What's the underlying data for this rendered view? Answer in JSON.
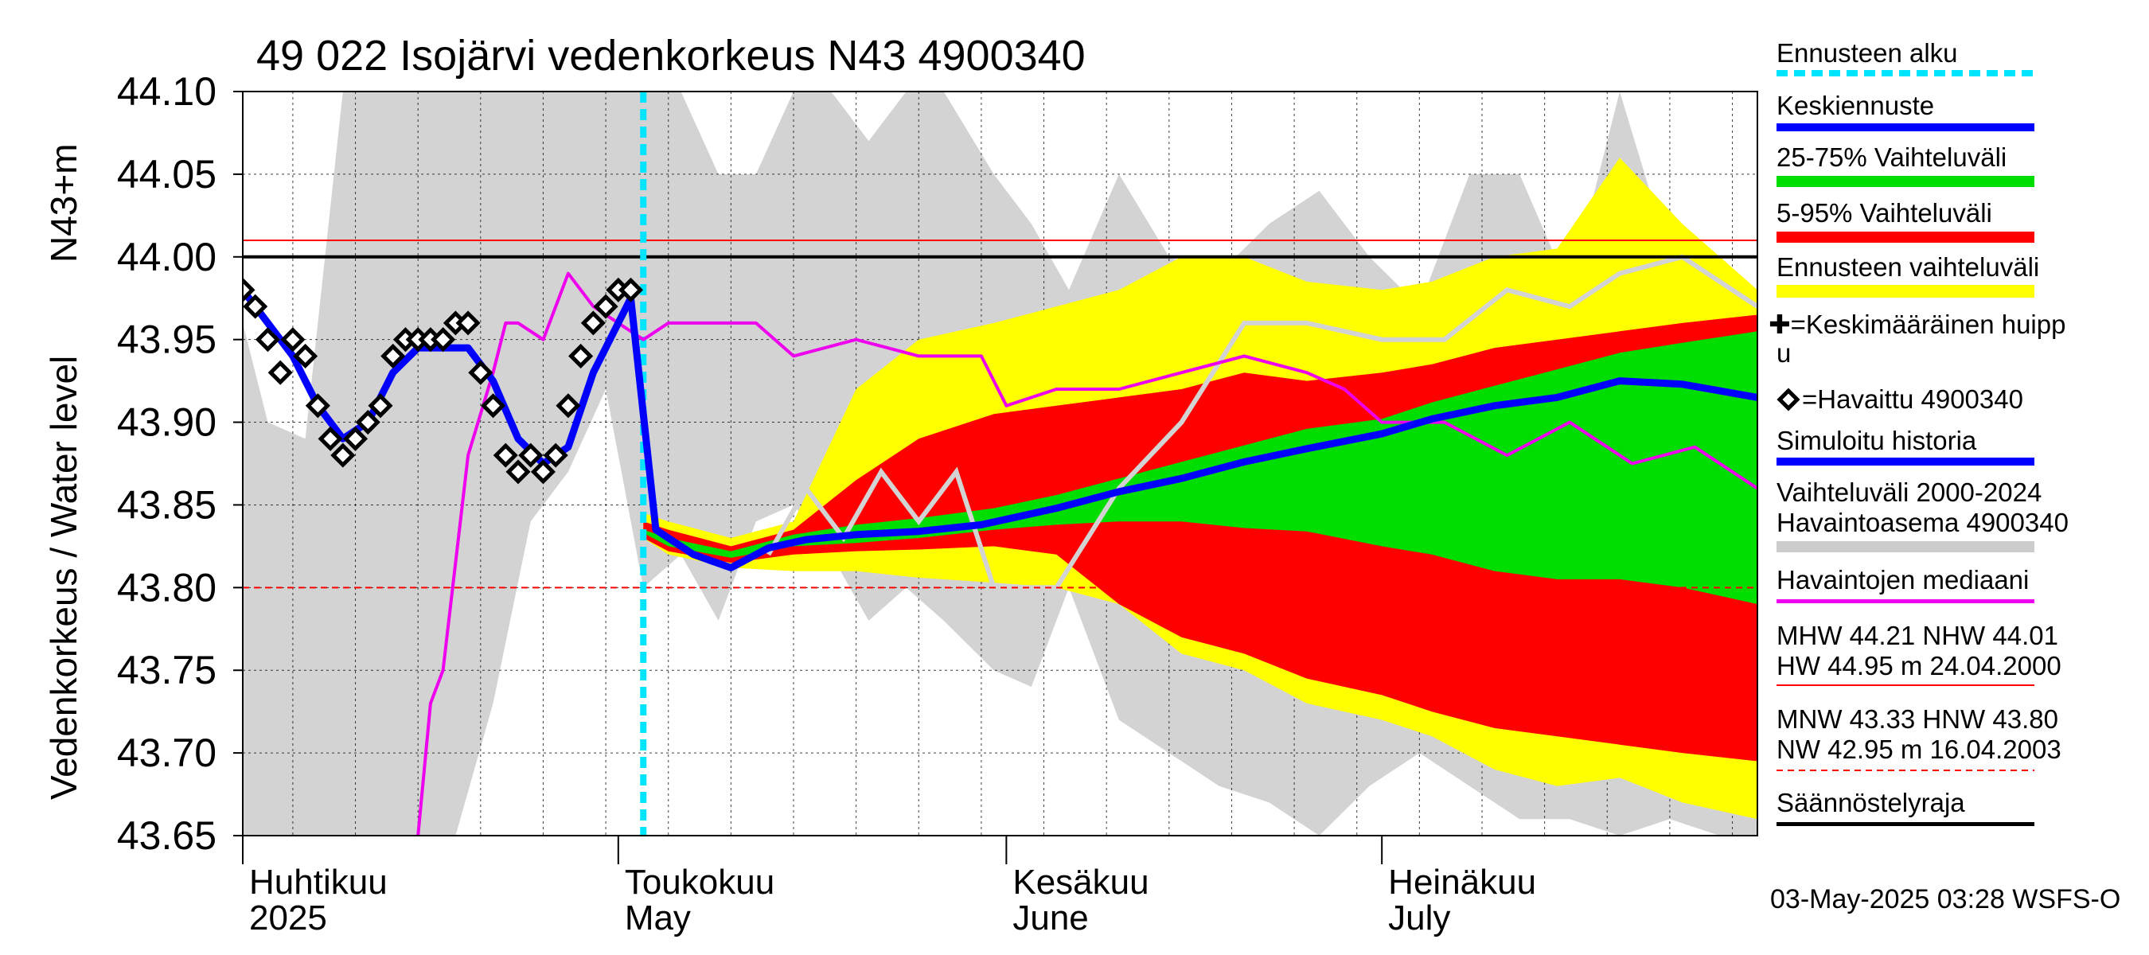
{
  "chart_data": {
    "type": "area",
    "title": "49 022 Isojärvi vedenkorkeus N43 4900340",
    "ylabel": "Vedenkorkeus / Water level",
    "ylabel_unit": "N43+m",
    "ylim": [
      43.65,
      44.1
    ],
    "yticks": [
      "43.65",
      "43.70",
      "43.75",
      "43.80",
      "43.85",
      "43.90",
      "43.95",
      "44.00",
      "44.05",
      "44.10"
    ],
    "xlim": [
      "2025-04-01",
      "2025-07-31"
    ],
    "month_labels": [
      {
        "fi": "Huhtikuu",
        "en": "2025",
        "date": "2025-04-01"
      },
      {
        "fi": "Toukokuu",
        "en": "May",
        "date": "2025-05-01"
      },
      {
        "fi": "Kesäkuu",
        "en": "June",
        "date": "2025-06-01"
      },
      {
        "fi": "Heinäkuu",
        "en": "July",
        "date": "2025-07-01"
      }
    ],
    "forecast_start": "2025-05-03",
    "reference_lines": [
      {
        "name": "NHW",
        "value": 44.01,
        "color": "#ff0000",
        "style": "solid"
      },
      {
        "name": "Säännöstelyraja",
        "value": 44.0,
        "color": "#000000",
        "style": "solid"
      },
      {
        "name": "HNW",
        "value": 43.8,
        "color": "#ff0000",
        "style": "dashed"
      }
    ],
    "observed": {
      "name": "Havaittu 4900340",
      "dates": [
        "2025-04-01",
        "2025-04-02",
        "2025-04-03",
        "2025-04-04",
        "2025-04-05",
        "2025-04-06",
        "2025-04-07",
        "2025-04-08",
        "2025-04-09",
        "2025-04-10",
        "2025-04-11",
        "2025-04-12",
        "2025-04-13",
        "2025-04-14",
        "2025-04-15",
        "2025-04-16",
        "2025-04-17",
        "2025-04-18",
        "2025-04-19",
        "2025-04-20",
        "2025-04-21",
        "2025-04-22",
        "2025-04-23",
        "2025-04-24",
        "2025-04-25",
        "2025-04-26",
        "2025-04-27",
        "2025-04-28",
        "2025-04-29",
        "2025-04-30",
        "2025-05-01",
        "2025-05-02"
      ],
      "values": [
        43.98,
        43.97,
        43.95,
        43.93,
        43.95,
        43.94,
        43.91,
        43.89,
        43.88,
        43.89,
        43.9,
        43.91,
        43.94,
        43.95,
        43.95,
        43.95,
        43.95,
        43.96,
        43.96,
        43.93,
        43.91,
        43.88,
        43.87,
        43.88,
        43.87,
        43.88,
        43.91,
        43.94,
        43.96,
        43.97,
        43.98,
        43.98
      ]
    },
    "simulated": {
      "name": "Simuloitu historia",
      "dates": [
        "2025-04-01",
        "2025-04-03",
        "2025-04-05",
        "2025-04-07",
        "2025-04-09",
        "2025-04-11",
        "2025-04-13",
        "2025-04-15",
        "2025-04-17",
        "2025-04-19",
        "2025-04-21",
        "2025-04-23",
        "2025-04-25",
        "2025-04-27",
        "2025-04-29",
        "2025-05-01",
        "2025-05-02"
      ],
      "values": [
        43.98,
        43.96,
        43.94,
        43.91,
        43.89,
        43.9,
        43.93,
        43.945,
        43.945,
        43.945,
        43.925,
        43.89,
        43.875,
        43.885,
        43.93,
        43.96,
        43.975
      ]
    },
    "forecast_mean": {
      "name": "Keskiennuste",
      "dates": [
        "2025-05-02",
        "2025-05-04",
        "2025-05-07",
        "2025-05-10",
        "2025-05-13",
        "2025-05-16",
        "2025-05-20",
        "2025-05-25",
        "2025-05-30",
        "2025-06-05",
        "2025-06-10",
        "2025-06-15",
        "2025-06-20",
        "2025-06-25",
        "2025-07-01",
        "2025-07-05",
        "2025-07-10",
        "2025-07-15",
        "2025-07-20",
        "2025-07-25",
        "2025-07-31"
      ],
      "values": [
        43.975,
        43.835,
        43.82,
        43.812,
        43.824,
        43.829,
        43.832,
        43.834,
        43.838,
        43.848,
        43.858,
        43.866,
        43.876,
        43.884,
        43.893,
        43.902,
        43.91,
        43.915,
        43.925,
        43.923,
        43.915
      ]
    },
    "bands": {
      "dates": [
        "2025-05-03",
        "2025-05-05",
        "2025-05-10",
        "2025-05-15",
        "2025-05-20",
        "2025-05-25",
        "2025-05-31",
        "2025-06-05",
        "2025-06-10",
        "2025-06-15",
        "2025-06-20",
        "2025-06-25",
        "2025-07-01",
        "2025-07-05",
        "2025-07-10",
        "2025-07-15",
        "2025-07-20",
        "2025-07-25",
        "2025-07-31"
      ],
      "forecast_range": {
        "name": "Ennusteen vaihteluväli",
        "upper": [
          43.845,
          43.84,
          43.83,
          43.84,
          43.92,
          43.95,
          43.96,
          43.97,
          43.98,
          44.0,
          44.0,
          43.985,
          43.98,
          43.985,
          44.0,
          44.005,
          44.06,
          44.02,
          43.98
        ],
        "lower": [
          43.83,
          43.82,
          43.812,
          43.81,
          43.81,
          43.806,
          43.803,
          43.8,
          43.79,
          43.76,
          43.75,
          43.73,
          43.72,
          43.71,
          43.69,
          43.68,
          43.685,
          43.67,
          43.66
        ]
      },
      "p5_95": {
        "name": "5-95% Vaihteluväli",
        "upper": [
          43.84,
          43.835,
          43.825,
          43.835,
          43.865,
          43.89,
          43.905,
          43.91,
          43.915,
          43.92,
          43.93,
          43.925,
          43.93,
          43.935,
          43.945,
          43.95,
          43.955,
          43.96,
          43.965
        ],
        "lower": [
          43.83,
          43.822,
          43.815,
          43.82,
          43.822,
          43.823,
          43.825,
          43.82,
          43.79,
          43.77,
          43.76,
          43.745,
          43.735,
          43.725,
          43.715,
          43.71,
          43.705,
          43.7,
          43.695
        ]
      },
      "p25_75": {
        "name": "25-75% Vaihteluväli",
        "upper": [
          43.835,
          43.83,
          43.822,
          43.832,
          43.838,
          43.842,
          43.848,
          43.856,
          43.866,
          43.876,
          43.886,
          43.896,
          43.902,
          43.912,
          43.922,
          43.932,
          43.942,
          43.948,
          43.955
        ],
        "lower": [
          43.833,
          43.825,
          43.818,
          43.825,
          43.827,
          43.83,
          43.835,
          43.838,
          43.84,
          43.84,
          43.836,
          43.834,
          43.825,
          43.82,
          43.81,
          43.805,
          43.805,
          43.8,
          43.79
        ]
      }
    },
    "historical_range": {
      "name": "Vaihteluväli 2000-2024 Havaintoasema 4900340",
      "dates": [
        "2025-04-01",
        "2025-04-03",
        "2025-04-06",
        "2025-04-09",
        "2025-04-12",
        "2025-04-15",
        "2025-04-18",
        "2025-04-21",
        "2025-04-24",
        "2025-04-27",
        "2025-04-30",
        "2025-05-03",
        "2025-05-06",
        "2025-05-09",
        "2025-05-12",
        "2025-05-15",
        "2025-05-18",
        "2025-05-21",
        "2025-05-24",
        "2025-05-27",
        "2025-05-31",
        "2025-06-03",
        "2025-06-06",
        "2025-06-10",
        "2025-06-14",
        "2025-06-18",
        "2025-06-22",
        "2025-06-26",
        "2025-06-30",
        "2025-07-04",
        "2025-07-08",
        "2025-07-12",
        "2025-07-16",
        "2025-07-20",
        "2025-07-24",
        "2025-07-28",
        "2025-07-31"
      ],
      "upper": [
        43.96,
        43.9,
        43.89,
        44.1,
        44.1,
        44.1,
        44.1,
        44.1,
        44.1,
        44.1,
        44.1,
        44.1,
        44.1,
        44.05,
        44.05,
        44.1,
        44.1,
        44.07,
        44.1,
        44.1,
        44.05,
        44.02,
        43.98,
        44.05,
        44.0,
        43.99,
        44.02,
        44.04,
        44.0,
        43.97,
        44.05,
        44.05,
        43.98,
        44.1,
        44.0,
        44.0,
        43.97
      ],
      "lower": [
        43.65,
        43.65,
        43.65,
        43.65,
        43.65,
        43.65,
        43.65,
        43.73,
        43.84,
        43.87,
        43.92,
        43.8,
        43.82,
        43.78,
        43.84,
        43.85,
        43.82,
        43.78,
        43.8,
        43.78,
        43.75,
        43.74,
        43.8,
        43.72,
        43.7,
        43.68,
        43.67,
        43.65,
        43.68,
        43.7,
        43.68,
        43.66,
        43.66,
        43.65,
        43.66,
        43.65,
        43.65
      ]
    },
    "historical_grey_line": {
      "dates": [
        "2025-05-13",
        "2025-05-16",
        "2025-05-19",
        "2025-05-22",
        "2025-05-25",
        "2025-05-28",
        "2025-05-31",
        "2025-06-05",
        "2025-06-10",
        "2025-06-15",
        "2025-06-20",
        "2025-06-25",
        "2025-07-01",
        "2025-07-06",
        "2025-07-11",
        "2025-07-16",
        "2025-07-20",
        "2025-07-25",
        "2025-07-31"
      ],
      "values": [
        43.82,
        43.86,
        43.83,
        43.87,
        43.84,
        43.87,
        43.8,
        43.8,
        43.86,
        43.9,
        43.96,
        43.96,
        43.95,
        43.95,
        43.98,
        43.97,
        43.99,
        44.0,
        43.97
      ]
    },
    "median": {
      "name": "Havaintojen mediaani",
      "dates": [
        "2025-04-15",
        "2025-04-16",
        "2025-04-17",
        "2025-04-19",
        "2025-04-21",
        "2025-04-22",
        "2025-04-23",
        "2025-04-25",
        "2025-04-27",
        "2025-04-29",
        "2025-05-01",
        "2025-05-03",
        "2025-05-05",
        "2025-05-08",
        "2025-05-12",
        "2025-05-15",
        "2025-05-20",
        "2025-05-25",
        "2025-05-30",
        "2025-06-01",
        "2025-06-05",
        "2025-06-10",
        "2025-06-15",
        "2025-06-20",
        "2025-06-25",
        "2025-06-28",
        "2025-07-01",
        "2025-07-06",
        "2025-07-11",
        "2025-07-16",
        "2025-07-21",
        "2025-07-26",
        "2025-07-31"
      ],
      "values": [
        43.65,
        43.73,
        43.75,
        43.88,
        43.93,
        43.96,
        43.96,
        43.95,
        43.99,
        43.97,
        43.96,
        43.95,
        43.96,
        43.96,
        43.96,
        43.94,
        43.95,
        43.94,
        43.94,
        43.91,
        43.92,
        43.92,
        43.93,
        43.94,
        43.93,
        43.92,
        43.9,
        43.9,
        43.88,
        43.9,
        43.875,
        43.885,
        43.86
      ]
    },
    "legend": [
      {
        "label": "Ennusteen alku",
        "color": "#00e5ff",
        "style": "dashed"
      },
      {
        "label": "Keskiennuste",
        "color": "#0000ff",
        "style": "solid"
      },
      {
        "label": "25-75% Vaihteluväli",
        "color": "#00dd00",
        "style": "solid"
      },
      {
        "label": "5-95% Vaihteluväli",
        "color": "#ff0000",
        "style": "solid"
      },
      {
        "label": "Ennusteen vaihteluväli",
        "color": "#ffff00",
        "style": "solid"
      },
      {
        "label": "✚=Keskimääräinen huippu",
        "color": "",
        "style": "text"
      },
      {
        "label": "=Havaittu 4900340",
        "color": "#000000",
        "style": "marker"
      },
      {
        "label": "Simuloitu historia",
        "color": "#0000ff",
        "style": "solid"
      },
      {
        "label": "Vaihteluväli 2000-2024 Havaintoasema 4900340",
        "color": "#cccccc",
        "style": "solid"
      },
      {
        "label": "Havaintojen mediaani",
        "color": "#ee00ee",
        "style": "solid"
      },
      {
        "label": "MHW  44.21 NHW  44.01 HW  44.95 m 24.04.2000",
        "color": "#ff0000",
        "style": "solid"
      },
      {
        "label": "MNW  43.33 HNW  43.80 NW  42.95 m 16.04.2003",
        "color": "#ff0000",
        "style": "dashed"
      },
      {
        "label": "Säännöstelyraja",
        "color": "#000000",
        "style": "solid"
      }
    ]
  },
  "legend_text": {
    "forecast_start": "Ennusteen alku",
    "mean": "Keskiennuste",
    "p25_75": "25-75% Vaihteluväli",
    "p5_95": "5-95% Vaihteluväli",
    "range": "Ennusteen vaihteluväli",
    "peak_line1": "✚=Keskimääräinen huipp",
    "peak_line2": "u",
    "observed": "=Havaittu 4900340",
    "simulated": "Simuloitu historia",
    "hist_line1": "Vaihteluväli 2000-2024",
    "hist_line2": " Havaintoasema 4900340",
    "median": "Havaintojen mediaani",
    "high_line1": "MHW  44.21 NHW  44.01",
    "high_line2": "HW  44.95 m 24.04.2000",
    "low_line1": "MNW  43.33 HNW  43.80",
    "low_line2": "NW  42.95 m 16.04.2003",
    "regulation": "Säännöstelyraja"
  },
  "timestamp": "03-May-2025 03:28 WSFS-O"
}
